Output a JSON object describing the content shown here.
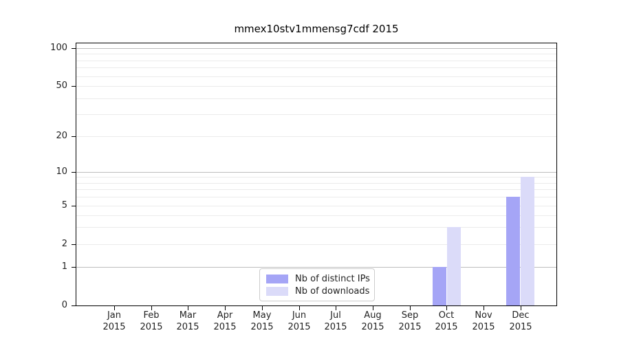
{
  "chart_data": {
    "type": "bar",
    "title": "mmex10stv1mmensg7cdf 2015",
    "categories": [
      "Jan 2015",
      "Feb 2015",
      "Mar 2015",
      "Apr 2015",
      "May 2015",
      "Jun 2015",
      "Jul 2015",
      "Aug 2015",
      "Sep 2015",
      "Oct 2015",
      "Nov 2015",
      "Dec 2015"
    ],
    "series": [
      {
        "name": "Nb of distinct IPs",
        "color": "#a5a5f6",
        "values": [
          0,
          0,
          0,
          0,
          0,
          0,
          0,
          0,
          0,
          1,
          0,
          6
        ]
      },
      {
        "name": "Nb of downloads",
        "color": "#dbdbf9",
        "values": [
          0,
          0,
          0,
          0,
          0,
          0,
          0,
          0,
          0,
          3,
          0,
          9
        ]
      }
    ],
    "xlabel": "",
    "ylabel": "",
    "y_axis": {
      "scale": "symlog",
      "ticks": [
        0,
        1,
        2,
        5,
        10,
        20,
        50,
        100
      ],
      "major_gridlines": [
        1,
        10,
        100
      ],
      "minor_gridlines": [
        2,
        3,
        4,
        5,
        6,
        7,
        8,
        9,
        20,
        30,
        40,
        50,
        60,
        70,
        80,
        90
      ],
      "range": [
        0,
        110
      ]
    },
    "grid": true,
    "legend_position": "lower center"
  },
  "colors": {
    "axis": "#000000",
    "text": "#1f1f1f",
    "major_grid": "#bdbdbd",
    "minor_grid": "#ebebeb"
  }
}
